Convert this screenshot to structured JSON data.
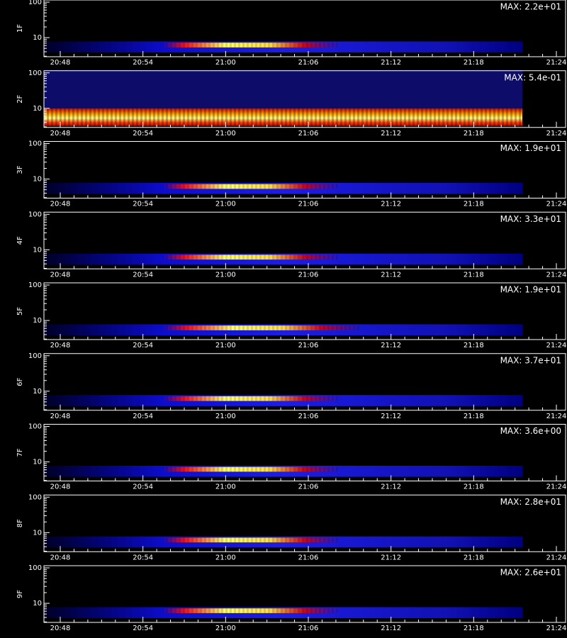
{
  "chart_data": {
    "type": "heatmap",
    "log_y": true,
    "ylim": [
      2.9,
      115
    ],
    "yticks": [
      10,
      100
    ],
    "xticks": [
      "20:48",
      "20:54",
      "21:00",
      "21:06",
      "21:12",
      "21:18",
      "21:24"
    ],
    "panels": [
      {
        "label": "1F",
        "max": "MAX: 2.2e+01"
      },
      {
        "label": "2F",
        "max": "MAX: 5.4e-01"
      },
      {
        "label": "3F",
        "max": "MAX: 1.9e+01"
      },
      {
        "label": "4F",
        "max": "MAX: 3.3e+01"
      },
      {
        "label": "5F",
        "max": "MAX: 1.9e+01"
      },
      {
        "label": "6F",
        "max": "MAX: 3.7e+01"
      },
      {
        "label": "7F",
        "max": "MAX: 3.6e+00"
      },
      {
        "label": "8F",
        "max": "MAX: 2.8e+01"
      },
      {
        "label": "9F",
        "max": "MAX: 2.6e+01"
      }
    ]
  }
}
